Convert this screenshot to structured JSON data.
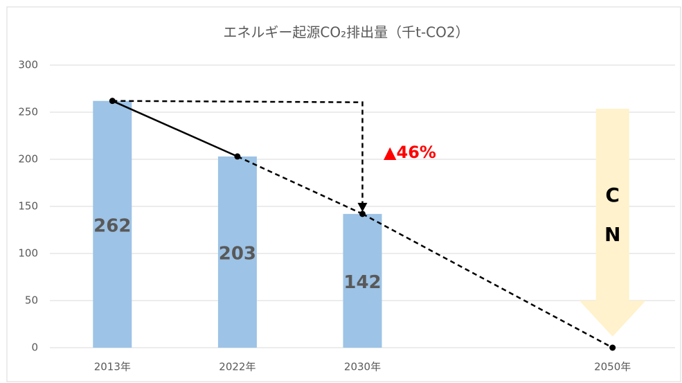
{
  "chart_data": {
    "type": "bar",
    "title": "エネルギー起源CO₂排出量（千t-CO2）",
    "categories": [
      "2013年",
      "2022年",
      "2030年",
      null,
      "2050年"
    ],
    "series": [
      {
        "type": "bar",
        "color": "#9dc3e6",
        "values": [
          262,
          203,
          142,
          null,
          null
        ]
      },
      {
        "type": "line",
        "color": "#000000",
        "values": [
          262,
          203,
          142,
          null,
          0
        ],
        "dashed_from_index": 1
      }
    ],
    "ylim": [
      0,
      300
    ],
    "yticks": [
      0,
      50,
      100,
      150,
      200,
      250,
      300
    ],
    "grid": true,
    "annotations": {
      "reduction": "▲46%",
      "reduction_color": "#ff0000",
      "cn": [
        "C",
        "N"
      ],
      "cn_color": "#fff2cc"
    }
  }
}
